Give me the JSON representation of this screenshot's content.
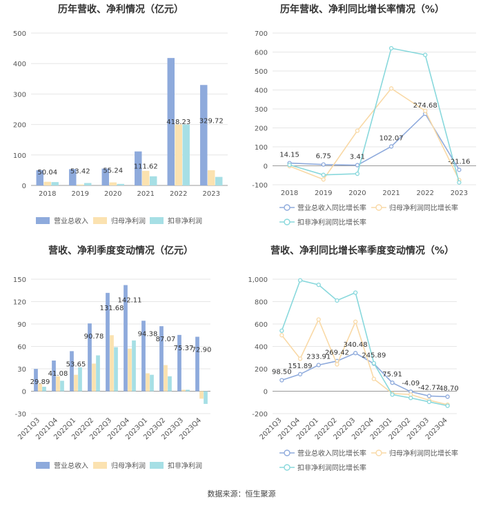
{
  "source": "数据来源：恒生聚源",
  "colors": {
    "revenue": "#8eaadc",
    "profit": "#fbe2b0",
    "deducted": "#a6dfe5",
    "revLine": "#8eaadc",
    "profLine": "#f9d9a6",
    "dedLine": "#88d8dc",
    "grid": "#e6e6e6",
    "axis": "#999999",
    "text": "#555555"
  },
  "chart_data": [
    {
      "id": "c1",
      "type": "bar",
      "title": "历年营收、净利情况（亿元）",
      "categories": [
        "2018",
        "2019",
        "2020",
        "2021",
        "2022",
        "2023"
      ],
      "ylim": [
        0,
        500
      ],
      "yticks": [
        0,
        100,
        200,
        300,
        400,
        500
      ],
      "series": [
        {
          "name": "营业总收入",
          "color_key": "revenue",
          "values": [
            50.04,
            53.42,
            55.24,
            111.62,
            418.23,
            329.72
          ]
        },
        {
          "name": "归母净利润",
          "color_key": "profit",
          "values": [
            12,
            3,
            10,
            48,
            200,
            50
          ]
        },
        {
          "name": "扣非净利润",
          "color_key": "deducted",
          "values": [
            11,
            8,
            5,
            30,
            200,
            28
          ]
        }
      ],
      "data_labels": [
        "50.04",
        "53.42",
        "55.24",
        "111.62",
        "418.23",
        "329.72"
      ]
    },
    {
      "id": "c2",
      "type": "line",
      "title": "历年营收、净利同比增长率情况（%）",
      "categories": [
        "2018",
        "2019",
        "2020",
        "2021",
        "2022",
        "2023"
      ],
      "ylim": [
        -100,
        700
      ],
      "yticks": [
        -100,
        0,
        100,
        200,
        300,
        400,
        500,
        600,
        700
      ],
      "series": [
        {
          "name": "营业总收入同比增长率",
          "color_key": "revLine",
          "values": [
            14.15,
            6.75,
            3.41,
            102.07,
            274.68,
            -21.16
          ]
        },
        {
          "name": "归母净利润同比增长率",
          "color_key": "profLine",
          "values": [
            -2,
            -72,
            185,
            408,
            290,
            -75
          ]
        },
        {
          "name": "扣非净利润同比增长率",
          "color_key": "dedLine",
          "values": [
            5,
            -48,
            -42,
            620,
            585,
            -88
          ]
        }
      ],
      "data_labels": [
        "14.15",
        "6.75",
        "3.41",
        "102.07",
        "274.68",
        "-21.16"
      ]
    },
    {
      "id": "c3",
      "type": "bar",
      "title": "营收、净利季度变动情况（亿元）",
      "categories": [
        "2021Q3",
        "2021Q4",
        "2022Q1",
        "2022Q2",
        "2022Q3",
        "2022Q4",
        "2023Q1",
        "2023Q2",
        "2023Q3",
        "2023Q4"
      ],
      "ylim": [
        -30,
        150
      ],
      "yticks": [
        -30,
        0,
        30,
        60,
        90,
        120,
        150
      ],
      "series": [
        {
          "name": "营业总收入",
          "color_key": "revenue",
          "values": [
            29.89,
            41.08,
            53.65,
            90.78,
            131.68,
            142.11,
            94.38,
            87.07,
            75.37,
            72.9
          ]
        },
        {
          "name": "归母净利润",
          "color_key": "profit",
          "values": [
            10,
            20,
            22,
            37,
            75,
            57,
            24,
            35,
            2,
            -10
          ]
        },
        {
          "name": "扣非净利润",
          "color_key": "deducted",
          "values": [
            6,
            14,
            32,
            48,
            59,
            68,
            22,
            20,
            2,
            -17
          ]
        }
      ],
      "data_labels": [
        "29.89",
        "41.08",
        "53.65",
        "90.78",
        "131.68",
        "142.11",
        "94.38",
        "87.07",
        "75.37",
        "72.90"
      ]
    },
    {
      "id": "c4",
      "type": "line",
      "title": "营收、净利同比增长率季度变动情况（%）",
      "categories": [
        "2021Q3",
        "2021Q4",
        "2022Q1",
        "2022Q2",
        "2022Q3",
        "2022Q4",
        "2023Q1",
        "2023Q2",
        "2023Q3",
        "2023Q4"
      ],
      "ylim": [
        -200,
        1000
      ],
      "yticks": [
        -200,
        0,
        200,
        400,
        600,
        800,
        1000
      ],
      "ytick_labels": [
        "-200",
        "0",
        "200",
        "400",
        "600",
        "800",
        "1,000"
      ],
      "series": [
        {
          "name": "营业总收入同比增长率",
          "color_key": "revLine",
          "values": [
            98.5,
            151.89,
            233.91,
            269.42,
            340.48,
            245.89,
            75.91,
            -4.09,
            -42.77,
            -48.7
          ]
        },
        {
          "name": "归母净利润同比增长率",
          "color_key": "profLine",
          "values": [
            500,
            290,
            640,
            240,
            620,
            110,
            -20,
            -30,
            -80,
            -120
          ]
        },
        {
          "name": "扣非净利润同比增长率",
          "color_key": "dedLine",
          "values": [
            540,
            990,
            950,
            810,
            880,
            250,
            -30,
            -60,
            -95,
            -130
          ]
        }
      ],
      "data_labels": [
        "98.50",
        "151.89",
        "233.91",
        "269.42",
        "340.48",
        "245.89",
        "75.91",
        "-4.09",
        "-42.77",
        "-48.70"
      ]
    }
  ]
}
